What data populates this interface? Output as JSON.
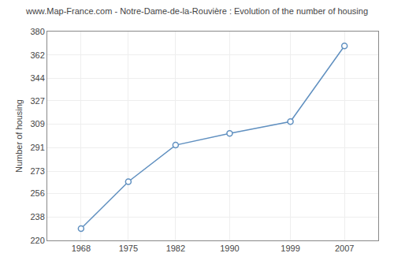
{
  "chart_data": {
    "type": "line",
    "title": "www.Map-France.com - Notre-Dame-de-la-Rouvière : Evolution of the number of housing",
    "x": [
      1968,
      1975,
      1982,
      1990,
      1999,
      2007
    ],
    "values": [
      229,
      265,
      293,
      302,
      311,
      369
    ],
    "ylabel": "Number of housing",
    "xlim": [
      1963,
      2012
    ],
    "ylim": [
      220,
      380
    ],
    "xticks": [
      1968,
      1975,
      1982,
      1990,
      1999,
      2007
    ],
    "yticks": [
      220,
      238,
      256,
      273,
      291,
      309,
      327,
      344,
      362,
      380
    ],
    "color": "#6090c0",
    "marker": "circle",
    "grid": true
  }
}
